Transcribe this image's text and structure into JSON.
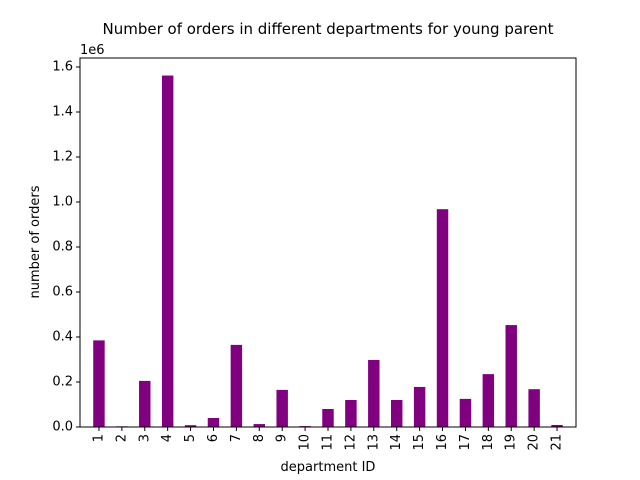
{
  "chart_data": {
    "type": "bar",
    "title": "Number of orders in different departments for young parent",
    "xlabel": "department ID",
    "ylabel": "number of orders",
    "y_scale_label": "1e6",
    "categories": [
      "1",
      "2",
      "3",
      "4",
      "5",
      "6",
      "7",
      "8",
      "9",
      "10",
      "11",
      "12",
      "13",
      "14",
      "15",
      "16",
      "17",
      "18",
      "19",
      "20",
      "21"
    ],
    "values": [
      385000,
      3000,
      205000,
      1562000,
      8000,
      40000,
      365000,
      13000,
      165000,
      4000,
      80000,
      120000,
      298000,
      120000,
      178000,
      968000,
      125000,
      235000,
      453000,
      168000,
      9000
    ],
    "ylim": [
      0,
      1640000
    ],
    "yticks": [
      0,
      200000,
      400000,
      600000,
      800000,
      1000000,
      1200000,
      1400000,
      1600000
    ],
    "ytick_labels": [
      "0.0",
      "0.2",
      "0.4",
      "0.6",
      "0.8",
      "1.0",
      "1.2",
      "1.4",
      "1.6"
    ],
    "bar_color": "#800080",
    "grid": false,
    "legend": false
  }
}
